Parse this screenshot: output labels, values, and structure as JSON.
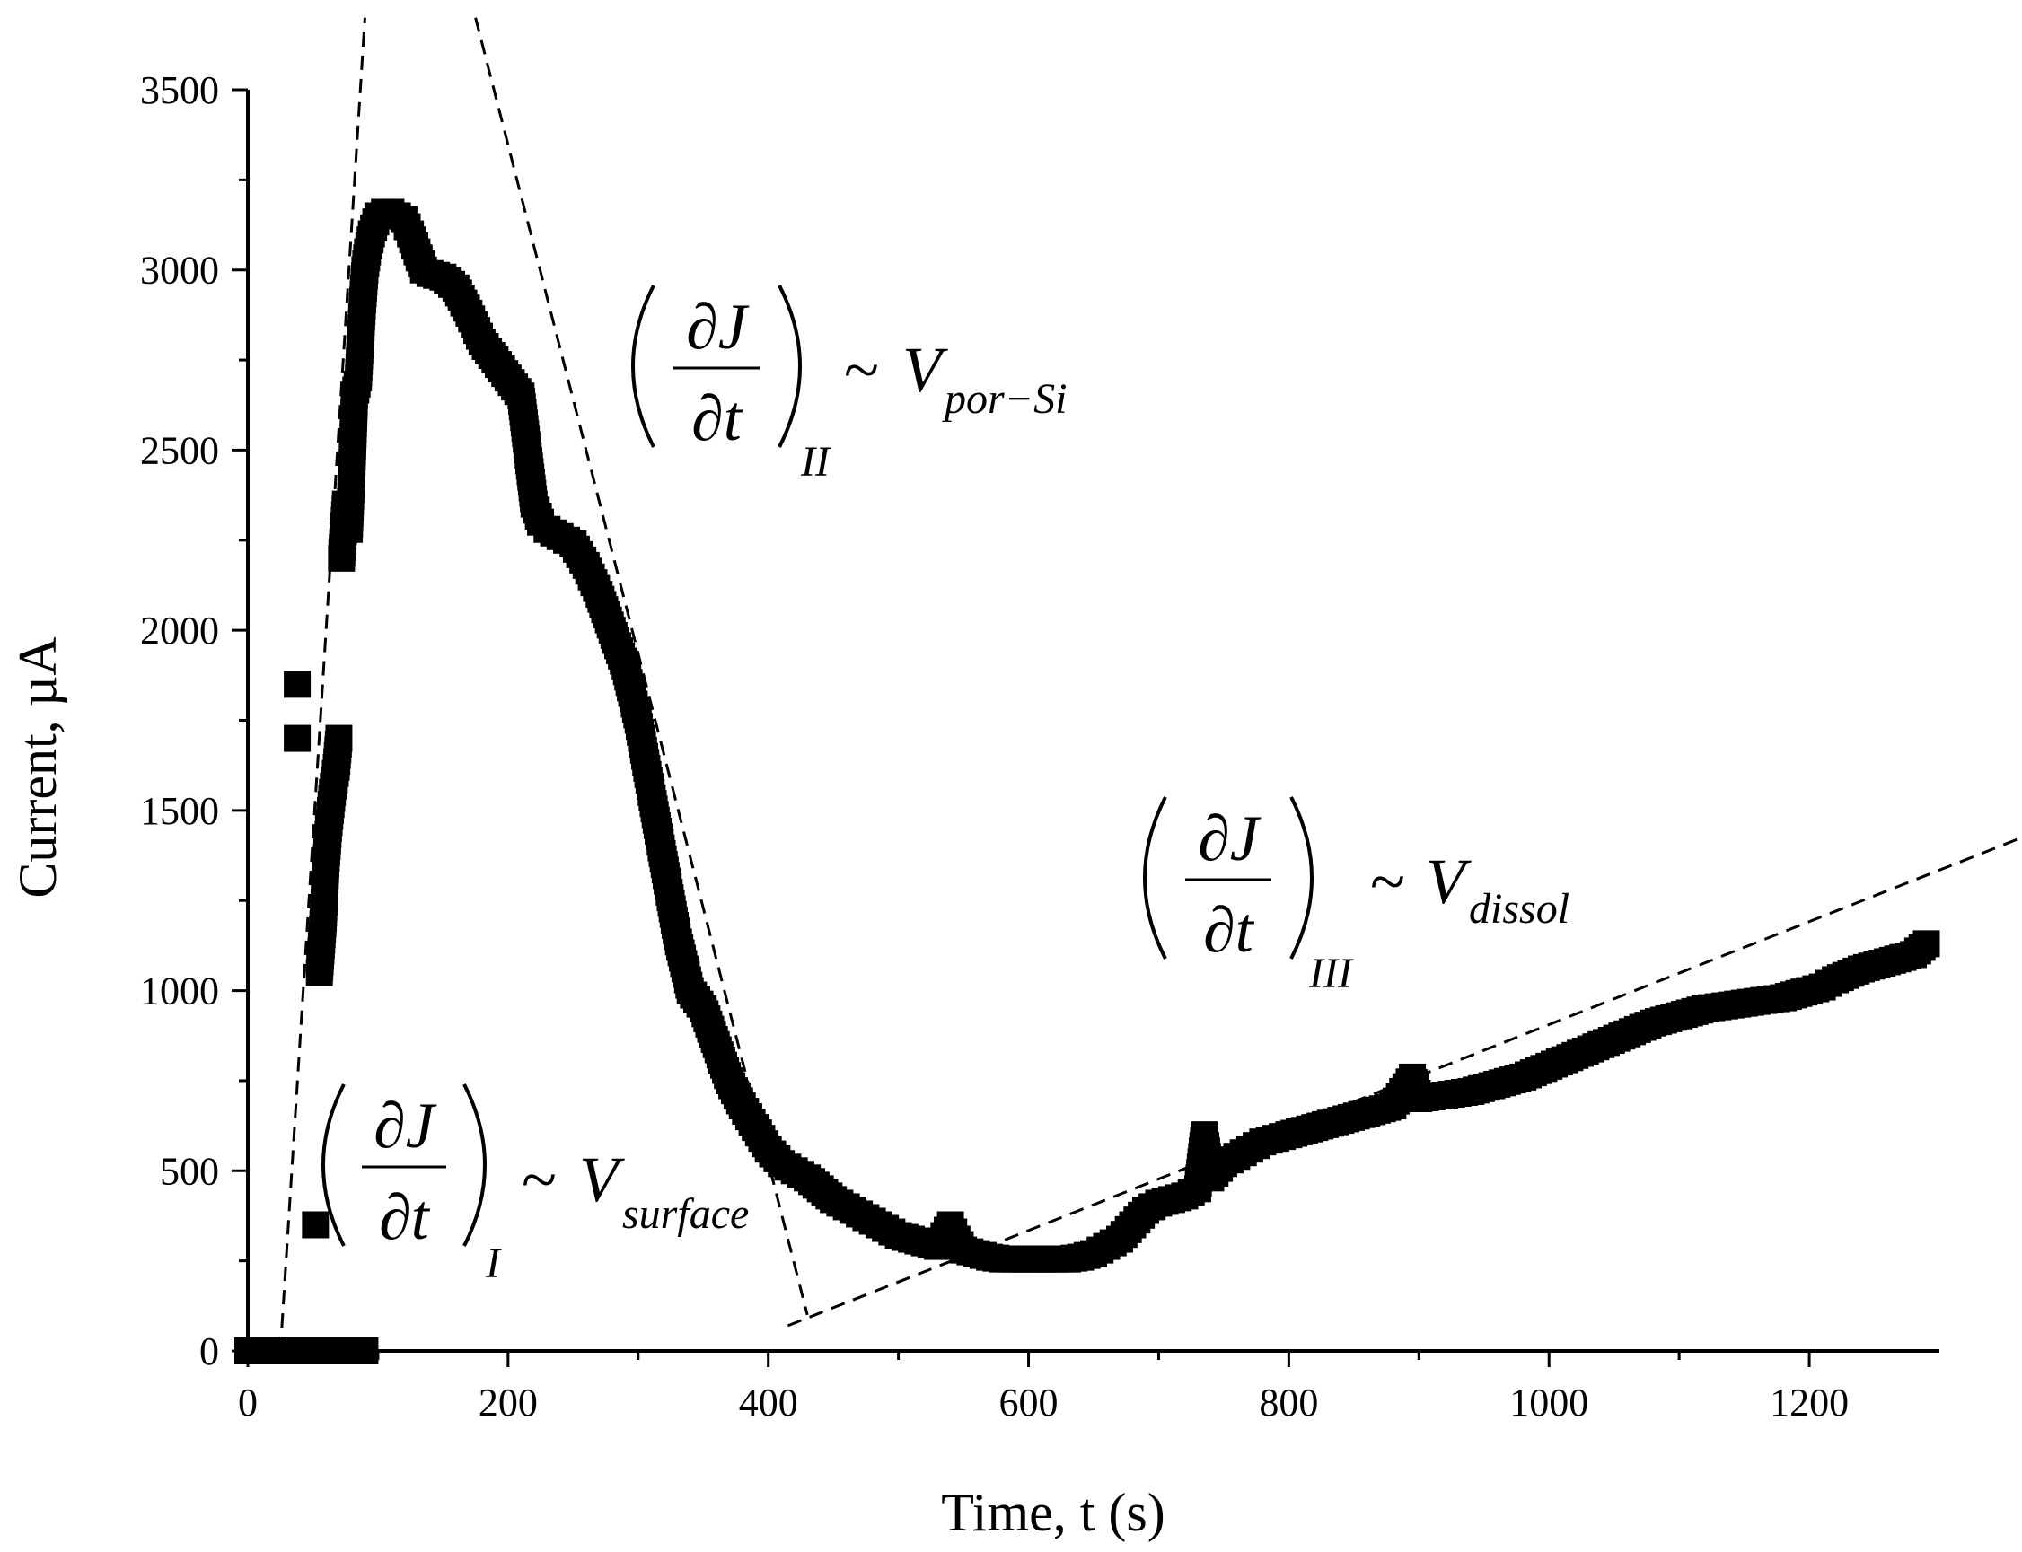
{
  "chart_data": {
    "type": "scatter",
    "title": "",
    "xlabel": "Time, t (s)",
    "ylabel": "Current, µA",
    "xlim": [
      0,
      1300
    ],
    "ylim": [
      0,
      3500
    ],
    "xticks": [
      0,
      200,
      400,
      600,
      800,
      1000,
      1200
    ],
    "yticks": [
      0,
      500,
      1000,
      1500,
      2000,
      2500,
      3000,
      3500
    ],
    "xtick_labels": [
      "0",
      "200",
      "400",
      "600",
      "800",
      "1000",
      "1200"
    ],
    "ytick_labels": [
      "0",
      "500",
      "1000",
      "1500",
      "2000",
      "2500",
      "3000",
      "3500"
    ],
    "marker_color": "#000000",
    "series": [
      {
        "name": "Current",
        "x": [
          0,
          10,
          20,
          30,
          40,
          50,
          60,
          70,
          80,
          90,
          38,
          38,
          52,
          55,
          58,
          60,
          62,
          65,
          68,
          70,
          72,
          75,
          78,
          80,
          82,
          85,
          88,
          90,
          92,
          95,
          100,
          105,
          110,
          115,
          120,
          125,
          130,
          135,
          140,
          150,
          160,
          170,
          180,
          190,
          200,
          210,
          215,
          220,
          225,
          230,
          240,
          250,
          260,
          270,
          280,
          290,
          300,
          305,
          310,
          320,
          330,
          340,
          350,
          360,
          370,
          380,
          390,
          400,
          410,
          420,
          430,
          440,
          450,
          460,
          470,
          480,
          490,
          500,
          510,
          520,
          530,
          540,
          545,
          550,
          560,
          570,
          580,
          590,
          600,
          610,
          620,
          630,
          640,
          650,
          660,
          670,
          680,
          690,
          700,
          710,
          720,
          730,
          735,
          740,
          750,
          760,
          770,
          780,
          790,
          800,
          820,
          840,
          860,
          880,
          895,
          900,
          920,
          940,
          960,
          980,
          1000,
          1020,
          1040,
          1060,
          1080,
          1100,
          1120,
          1140,
          1160,
          1180,
          1200,
          1210,
          1220,
          1240,
          1260,
          1280,
          1290
        ],
        "y": [
          0,
          0,
          0,
          0,
          0,
          0,
          0,
          0,
          0,
          0,
          1850,
          1700,
          350,
          1050,
          1200,
          1350,
          1450,
          1550,
          1620,
          1700,
          2200,
          2350,
          2280,
          2450,
          2650,
          2700,
          2900,
          3000,
          3050,
          3100,
          3150,
          3160,
          3160,
          3150,
          3140,
          3100,
          3050,
          3000,
          2990,
          2980,
          2950,
          2880,
          2800,
          2750,
          2700,
          2650,
          2500,
          2350,
          2300,
          2280,
          2260,
          2240,
          2180,
          2100,
          2000,
          1900,
          1750,
          1650,
          1550,
          1350,
          1150,
          1000,
          950,
          850,
          750,
          680,
          620,
          560,
          520,
          500,
          480,
          450,
          420,
          400,
          380,
          360,
          340,
          320,
          310,
          300,
          290,
          350,
          310,
          280,
          270,
          260,
          255,
          255,
          255,
          255,
          255,
          255,
          260,
          270,
          290,
          310,
          350,
          390,
          410,
          420,
          430,
          450,
          600,
          480,
          520,
          540,
          560,
          580,
          590,
          600,
          620,
          640,
          660,
          680,
          760,
          700,
          710,
          720,
          740,
          760,
          790,
          820,
          850,
          880,
          910,
          930,
          950,
          960,
          970,
          980,
          1000,
          1010,
          1030,
          1060,
          1080,
          1100,
          1130
        ]
      }
    ],
    "guides": [
      {
        "name": "Region I tangent",
        "style": "dashed",
        "x": [
          25,
          90
        ],
        "y": [
          0,
          3700
        ]
      },
      {
        "name": "Region II tangent",
        "style": "dashed",
        "x": [
          175,
          430
        ],
        "y": [
          3700,
          100
        ]
      },
      {
        "name": "Region III tangent",
        "style": "dashed",
        "x": [
          415,
          1360
        ],
        "y": [
          70,
          1420
        ]
      }
    ],
    "annotations": [
      {
        "name": "surface",
        "fraction_num": "∂J",
        "fraction_den": "∂t",
        "subscript": "I",
        "tilde": "~",
        "symbol": "V",
        "symbol_sub": "surface"
      },
      {
        "name": "porous-si",
        "fraction_num": "∂J",
        "fraction_den": "∂t",
        "subscript": "II",
        "tilde": "~",
        "symbol": "V",
        "symbol_sub": "por−Si"
      },
      {
        "name": "dissolution",
        "fraction_num": "∂J",
        "fraction_den": "∂t",
        "subscript": "III",
        "tilde": "~",
        "symbol": "V",
        "symbol_sub": "dissol"
      }
    ]
  }
}
